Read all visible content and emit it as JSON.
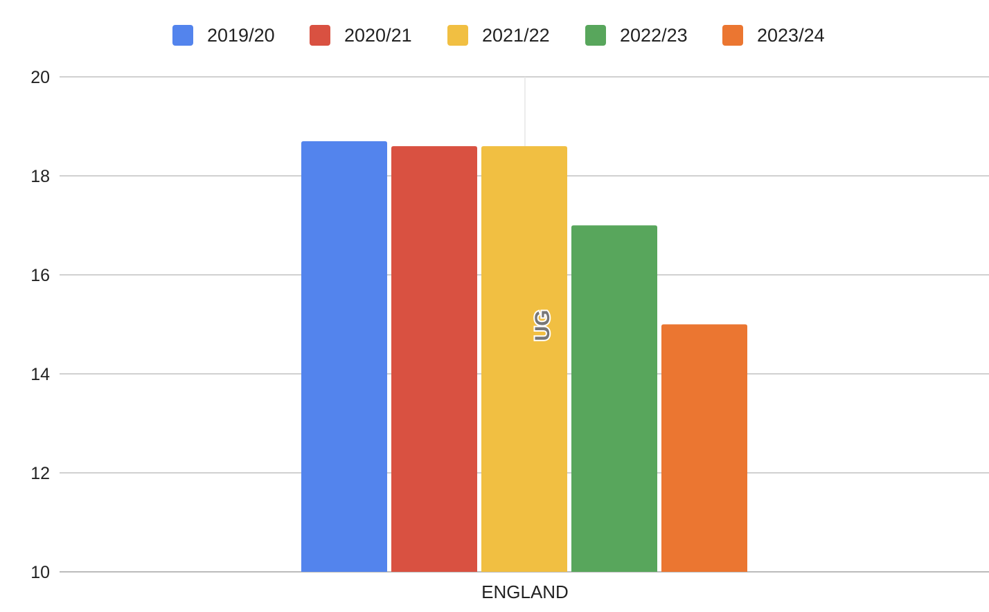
{
  "chart_data": {
    "type": "bar",
    "title": "",
    "xlabel": "",
    "ylabel": "",
    "categories": [
      "ENGLAND"
    ],
    "series": [
      {
        "name": "2019/20",
        "values": [
          18.7
        ],
        "color": "#5384ed"
      },
      {
        "name": "2020/21",
        "values": [
          18.6
        ],
        "color": "#d95141"
      },
      {
        "name": "2021/22",
        "values": [
          18.6
        ],
        "color": "#f1bf42"
      },
      {
        "name": "2022/23",
        "values": [
          17.0
        ],
        "color": "#58a65c"
      },
      {
        "name": "2023/24",
        "values": [
          15.0
        ],
        "color": "#eb7631"
      }
    ],
    "ylim": [
      10,
      20
    ],
    "yticks": [
      10,
      12,
      14,
      16,
      18,
      20
    ],
    "grid": true,
    "legend": "top-center",
    "annotation": "UG"
  }
}
